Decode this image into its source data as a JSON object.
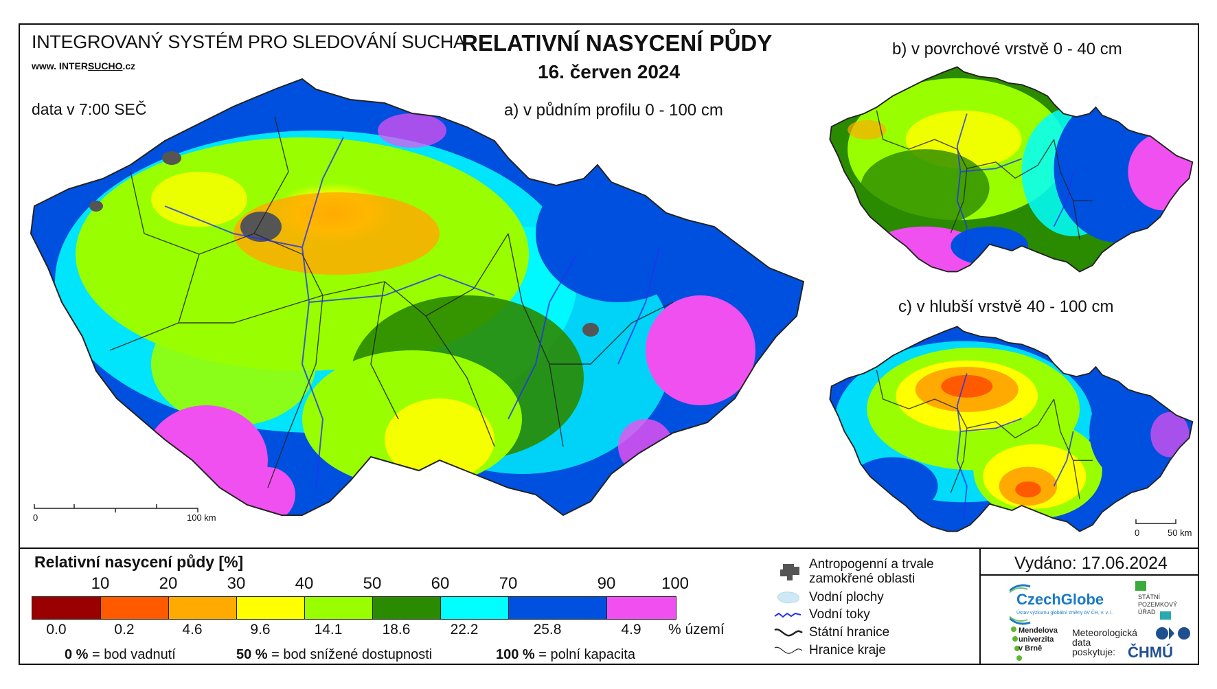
{
  "header": {
    "system_title": "INTEGROVANÝ SYSTÉM PRO SLEDOVÁNÍ SUCHA",
    "url_prefix": "www. INTER",
    "url_brand": "SUCHO",
    "url_suffix": ".cz",
    "data_time": "data v 7:00 SEČ",
    "main_title": "RELATIVNÍ NASYCENÍ PŮDY",
    "date": "16. červen 2024"
  },
  "maps": {
    "a_label": "a) v půdním profilu 0 - 100 cm",
    "b_label": "b) v povrchové vrstvě 0 - 40 cm",
    "c_label": "c) v hlubší vrstvě 40 - 100 cm",
    "scale_a": {
      "zero": "0",
      "end": "100 km"
    },
    "scale_c": {
      "zero": "0",
      "end": "50 km"
    }
  },
  "legend": {
    "title": "Relativní nasycení půdy [%]",
    "ticks": [
      "10",
      "20",
      "30",
      "40",
      "50",
      "60",
      "70",
      "90",
      "100"
    ],
    "classes": [
      {
        "color": "#9b0000",
        "area_pct": "0.0"
      },
      {
        "color": "#ff5a00",
        "area_pct": "0.2"
      },
      {
        "color": "#ffaa00",
        "area_pct": "4.6"
      },
      {
        "color": "#ffff00",
        "area_pct": "9.6"
      },
      {
        "color": "#99ff00",
        "area_pct": "14.1"
      },
      {
        "color": "#2a8a00",
        "area_pct": "18.6"
      },
      {
        "color": "#00ffff",
        "area_pct": "22.2"
      },
      {
        "color": "#0050e0",
        "area_pct": "25.8"
      },
      {
        "color": "#f050f0",
        "area_pct": "4.9"
      }
    ],
    "area_unit": "% území",
    "notes": [
      {
        "value": "0 %",
        "text": "= bod vadnutí"
      },
      {
        "value": "50 %",
        "text": "= bod snížené dostupnosti"
      },
      {
        "value": "100 %",
        "text": "= polní kapacita"
      }
    ]
  },
  "symbols": {
    "anthropogenic": "Antropogenní a trvale zamokřené oblasti",
    "water_bodies": "Vodní plochy",
    "rivers": "Vodní toky",
    "state_border": "Státní hranice",
    "region_border": "Hranice kraje"
  },
  "footer": {
    "issued": "Vydáno: 17.06.2024",
    "czechglobe": "CzechGlobe",
    "czechglobe_sub": "Ústav výzkumu globální změny AV ČR, v. v. i.",
    "spu": [
      "STÁTNÍ",
      "POZEMKOVÝ",
      "ÚŘAD"
    ],
    "mendel": [
      "Mendelova",
      "univerzita",
      "v Brně"
    ],
    "meteo": [
      "Meteorologická",
      "data",
      "poskytuje:"
    ],
    "chmu": "ČHMÚ"
  },
  "colors": {
    "anthro": "#555555",
    "water": "#cfe8f5",
    "river": "#2233ee",
    "border": "#222222"
  }
}
